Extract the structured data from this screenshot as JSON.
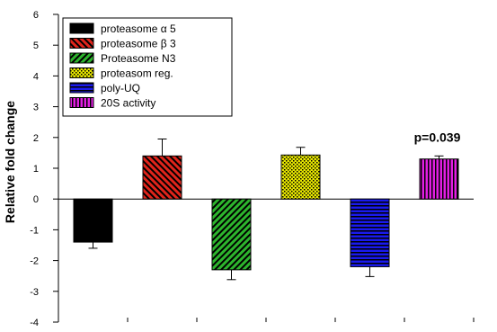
{
  "chart_data": {
    "type": "bar",
    "title": "",
    "xlabel": "",
    "ylabel": "Relative fold change",
    "ylim": [
      -4,
      6
    ],
    "yticks": [
      "-4",
      "-3",
      "-2",
      "-1",
      "0",
      "1",
      "2",
      "3",
      "4",
      "5",
      "6"
    ],
    "grid": false,
    "legend_position": "top-left",
    "series": [
      {
        "name": "proteasome α 5",
        "value": -1.4,
        "error": 0.2,
        "color": "#000000",
        "pattern": "solid"
      },
      {
        "name": "proteasome β 3",
        "value": 1.4,
        "error": 0.55,
        "color": "#e0241b",
        "pattern": "diagonal-up"
      },
      {
        "name": "Proteasome N3",
        "value": -2.3,
        "error": 0.32,
        "color": "#2db52d",
        "pattern": "diagonal-down"
      },
      {
        "name": "proteasom reg.",
        "value": 1.43,
        "error": 0.25,
        "color": "#e6e600",
        "pattern": "dots"
      },
      {
        "name": "poly-UQ",
        "value": -2.2,
        "error": 0.32,
        "color": "#1a1aee",
        "pattern": "horizontal"
      },
      {
        "name": "20S activity",
        "value": 1.3,
        "error": 0.1,
        "color": "#e31ee3",
        "pattern": "vertical"
      }
    ],
    "annotations": [
      {
        "text": "p=0.039",
        "series_index": 5
      }
    ]
  }
}
